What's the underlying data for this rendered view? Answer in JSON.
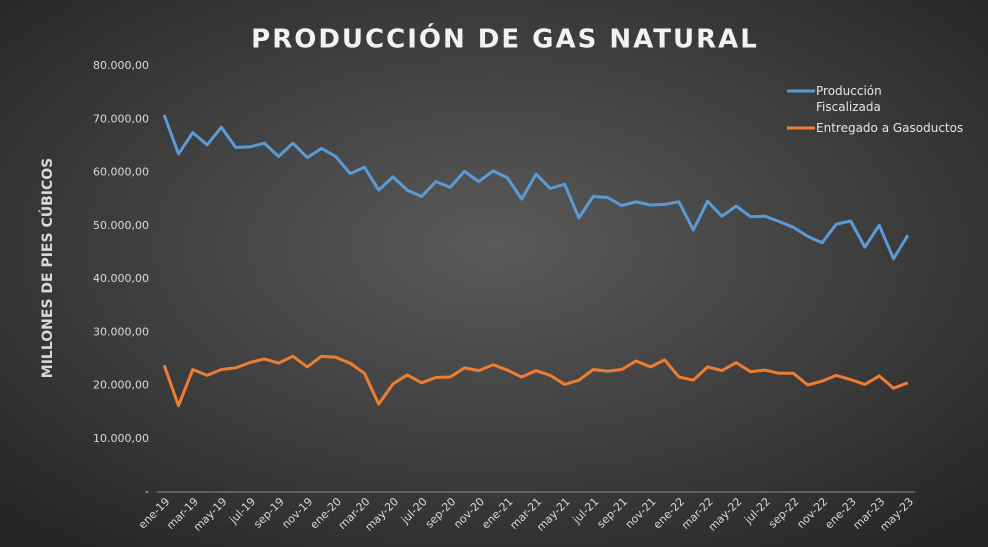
{
  "chart_data": {
    "type": "line",
    "title": "PRODUCCIÓN DE GAS NATURAL",
    "y_label": "MILLONES DE PIES CÚBICOS",
    "categories": [
      "ene-19",
      null,
      "mar-19",
      null,
      "may-19",
      null,
      "jul-19",
      null,
      "sep-19",
      null,
      "nov-19",
      null,
      "ene-20",
      null,
      "mar-20",
      null,
      "may-20",
      null,
      "jul-20",
      null,
      "sep-20",
      null,
      "nov-20",
      null,
      "ene-21",
      null,
      "mar-21",
      null,
      "may-21",
      null,
      "jul-21",
      null,
      "sep-21",
      null,
      "nov-21",
      null,
      "ene-22",
      null,
      "mar-22",
      null,
      "may-22",
      null,
      "jul-22",
      null,
      "sep-22",
      null,
      "nov-22",
      null,
      "ene-23",
      null,
      "mar-23",
      null,
      "may-23"
    ],
    "series": [
      {
        "name": "Producción Fiscalizada",
        "color": "#5b9bd5",
        "values": [
          70800,
          63500,
          67500,
          65200,
          68500,
          64700,
          64800,
          65500,
          63000,
          65500,
          62800,
          64500,
          63000,
          59800,
          61000,
          56700,
          59200,
          56700,
          55500,
          58300,
          57200,
          60200,
          58300,
          60300,
          59000,
          55000,
          59700,
          57000,
          57800,
          51500,
          55500,
          55300,
          53800,
          54500,
          53900,
          54000,
          54500,
          49200,
          54600,
          51800,
          53700,
          51700,
          51800,
          50800,
          49700,
          48000,
          46800,
          50300,
          50900,
          46000,
          50100,
          43800,
          48200
        ]
      },
      {
        "name": "Entregado a Gasoductos",
        "color": "#ed7d31",
        "values": [
          23800,
          16200,
          23000,
          21900,
          23000,
          23300,
          24300,
          25000,
          24200,
          25500,
          23500,
          25500,
          25300,
          24200,
          22300,
          16500,
          20300,
          22000,
          20500,
          21500,
          21600,
          23300,
          22800,
          23900,
          22900,
          21600,
          22800,
          21900,
          20200,
          21000,
          23000,
          22700,
          23000,
          24600,
          23500,
          24800,
          21600,
          21000,
          23500,
          22800,
          24300,
          22600,
          22900,
          22300,
          22300,
          20100,
          20800,
          21900,
          21100,
          20200,
          21800,
          19500,
          20500
        ]
      }
    ],
    "ylim": [
      0,
      80000
    ],
    "yticks": [
      {
        "value": 0,
        "label": "-"
      },
      {
        "value": 10000,
        "label": "10.000,00"
      },
      {
        "value": 20000,
        "label": "20.000,00"
      },
      {
        "value": 30000,
        "label": "30.000,00"
      },
      {
        "value": 40000,
        "label": "40.000,00"
      },
      {
        "value": 50000,
        "label": "50.000,00"
      },
      {
        "value": 60000,
        "label": "60.000,00"
      },
      {
        "value": 70000,
        "label": "70.000,00"
      },
      {
        "value": 80000,
        "label": "80.000,00"
      }
    ],
    "grid": false,
    "legend": "top-right"
  }
}
